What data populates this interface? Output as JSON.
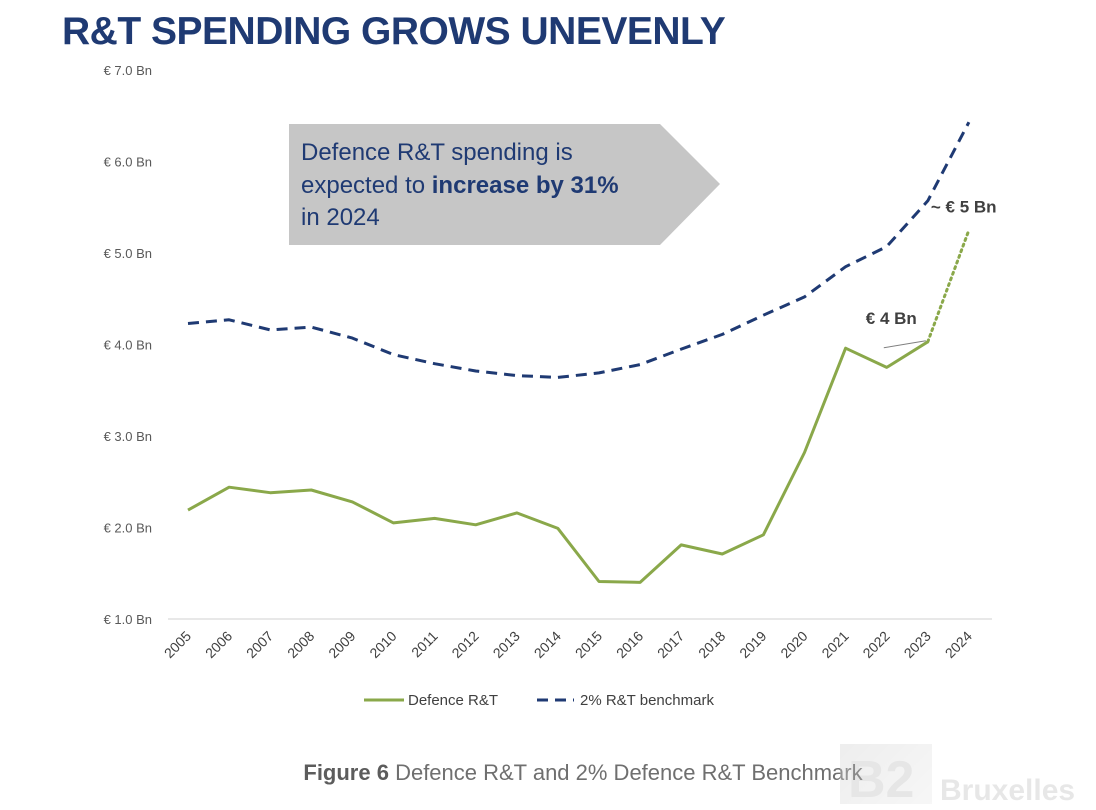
{
  "page": {
    "title": "R&T SPENDING GROWS UNEVENLY",
    "caption_bold": "Figure 6",
    "caption_text": " Defence R&T and 2% Defence R&T Benchmark",
    "watermark": {
      "logo": "B2",
      "word": "Bruxelles"
    }
  },
  "callout": {
    "line1": "Defence R&T spending is",
    "line2_pre": "expected to ",
    "line2_bold": "increase by 31%",
    "line3": "in 2024",
    "fill": "#c6c6c6",
    "text_color": "#1f3a73"
  },
  "chart_data": {
    "type": "line",
    "x": [
      "2005",
      "2006",
      "2007",
      "2008",
      "2009",
      "2010",
      "2011",
      "2012",
      "2013",
      "2014",
      "2015",
      "2016",
      "2017",
      "2018",
      "2019",
      "2020",
      "2021",
      "2022",
      "2023",
      "2024"
    ],
    "ylim": [
      1.0,
      7.0
    ],
    "yticks": [
      1.0,
      2.0,
      3.0,
      4.0,
      5.0,
      6.0,
      7.0
    ],
    "ytick_labels": [
      "€ 1.0 Bn",
      "€ 2.0 Bn",
      "€ 3.0 Bn",
      "€ 4.0 Bn",
      "€ 5.0 Bn",
      "€ 6.0 Bn",
      "€ 7.0 Bn"
    ],
    "grid": false,
    "legend_position": "bottom",
    "series": [
      {
        "name": "Defence R&T",
        "color": "#8aa84a",
        "style": "solid",
        "values": [
          2.19,
          2.44,
          2.38,
          2.41,
          2.28,
          2.05,
          2.1,
          2.03,
          2.16,
          1.99,
          1.41,
          1.4,
          1.81,
          1.71,
          1.92,
          2.82,
          3.96,
          3.75,
          4.03,
          5.25
        ],
        "projected_from_index": 18
      },
      {
        "name": "2% R&T benchmark",
        "color": "#1f3a73",
        "style": "dashed",
        "values": [
          4.23,
          4.27,
          4.16,
          4.19,
          4.07,
          3.89,
          3.79,
          3.71,
          3.66,
          3.64,
          3.69,
          3.78,
          3.95,
          4.11,
          4.32,
          4.52,
          4.85,
          5.07,
          5.57,
          6.43
        ]
      }
    ],
    "annotations": [
      {
        "text": "€ 4 Bn",
        "x": "2023",
        "y": 4.03
      },
      {
        "text": "~ € 5 Bn",
        "x": "2024",
        "y": 5.25
      }
    ]
  }
}
